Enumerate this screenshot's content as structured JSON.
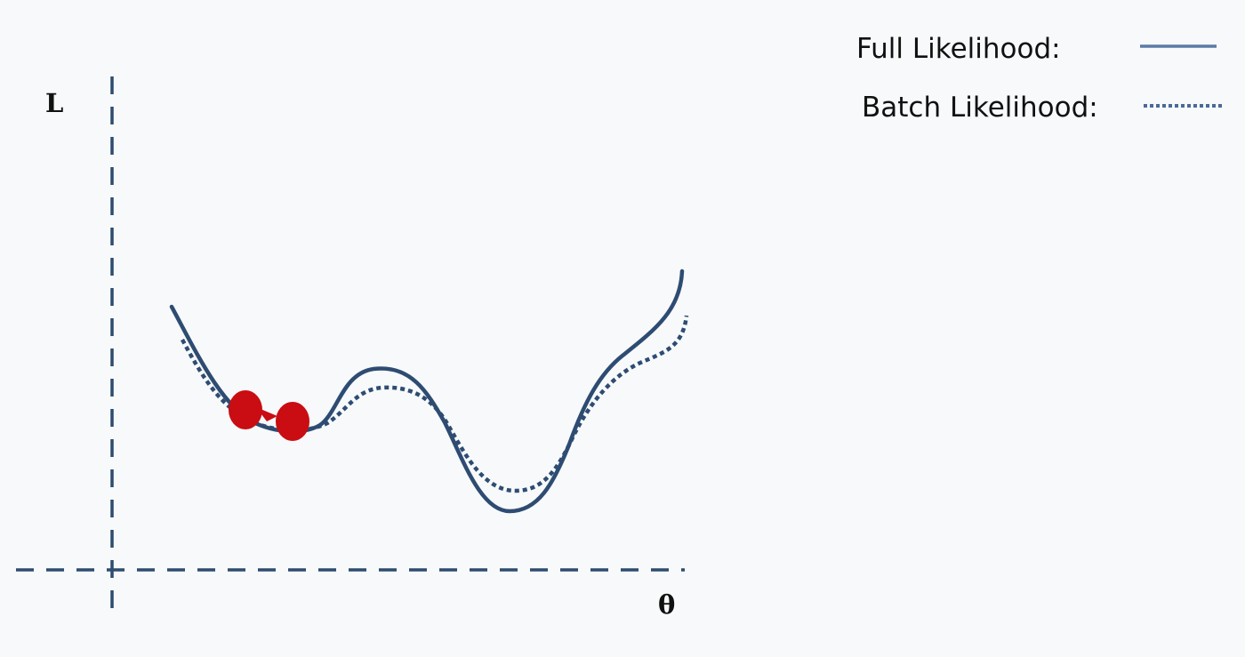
{
  "diagram": {
    "axes": {
      "y_label": "L",
      "x_label": "θ"
    },
    "legend": [
      {
        "label": "Full Likelihood:",
        "style": "solid"
      },
      {
        "label": "Batch Likelihood:",
        "style": "dotted"
      }
    ],
    "curves": [
      {
        "id": "full-likelihood",
        "style": "solid"
      },
      {
        "id": "batch-likelihood",
        "style": "dotted"
      }
    ],
    "markers": {
      "count": 2,
      "description_visible": false
    },
    "colors": {
      "background": "#f7f9fb",
      "axis": "#2d4c6e",
      "curve": "#2e4c72",
      "marker": "#c90d12",
      "text": "#111111"
    }
  }
}
